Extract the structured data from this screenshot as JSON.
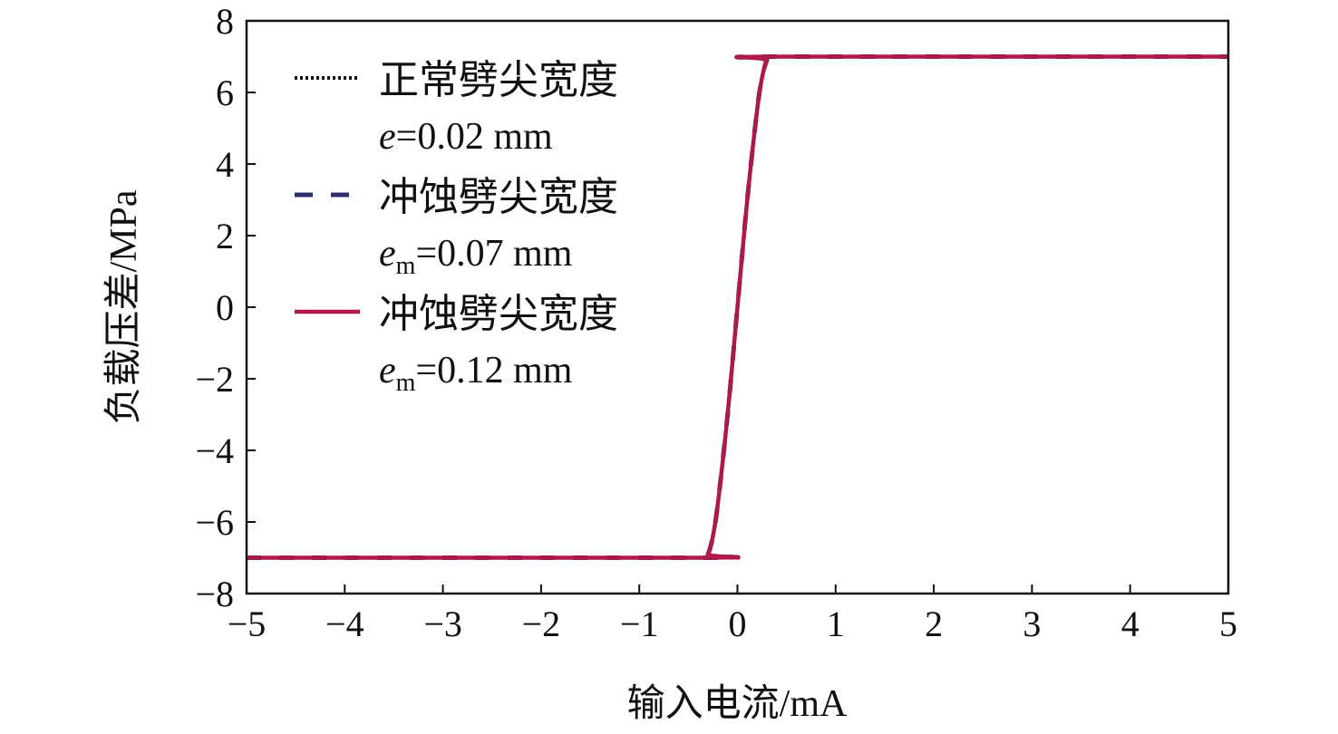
{
  "chart_data": {
    "type": "line",
    "title": "",
    "xlabel": "输入电流/mA",
    "ylabel": "负载压差/MPa",
    "xlim": [
      -5,
      5
    ],
    "ylim": [
      -8,
      8
    ],
    "xticks": [
      -5,
      -4,
      -3,
      -2,
      -1,
      0,
      1,
      2,
      3,
      4,
      5
    ],
    "yticks": [
      -8,
      -6,
      -4,
      -2,
      0,
      2,
      4,
      6,
      8
    ],
    "grid": false,
    "legend_placement": "top-left",
    "series": [
      {
        "name": "正常劈尖宽度",
        "sub": "e=0.02 mm",
        "sub_italic": "e",
        "sub_script": "",
        "sub_rest": "=0.02 mm",
        "style": "dotted",
        "color": "#111111",
        "x": [
          -5,
          -0.35,
          -0.3,
          -0.25,
          -0.2,
          -0.1,
          0,
          0.1,
          0.2,
          0.25,
          0.3,
          0.35,
          5
        ],
        "y": [
          -7,
          -7,
          -6.9,
          -6.4,
          -5.5,
          -3,
          0,
          3,
          5.5,
          6.4,
          6.9,
          7,
          7
        ]
      },
      {
        "name": "冲蚀劈尖宽度",
        "sub": "em=0.07 mm",
        "sub_italic": "e",
        "sub_script": "m",
        "sub_rest": "=0.07 mm",
        "style": "dashed",
        "color": "#2e2e6e",
        "x": [
          -5,
          -0.35,
          -0.3,
          -0.25,
          -0.2,
          -0.1,
          0,
          0.1,
          0.2,
          0.25,
          0.3,
          0.35,
          5
        ],
        "y": [
          -7,
          -7,
          -6.9,
          -6.4,
          -5.5,
          -3,
          0,
          3,
          5.5,
          6.4,
          6.9,
          7,
          7
        ]
      },
      {
        "name": "冲蚀劈尖宽度",
        "sub": "em=0.12 mm",
        "sub_italic": "e",
        "sub_script": "m",
        "sub_rest": "=0.12 mm",
        "style": "solid",
        "color": "#b0174a",
        "x": [
          -5,
          -0.35,
          -0.3,
          -0.25,
          -0.2,
          -0.1,
          0,
          0.1,
          0.2,
          0.25,
          0.3,
          0.35,
          5
        ],
        "y": [
          -7,
          -7,
          -6.9,
          -6.4,
          -5.5,
          -3,
          0,
          3,
          5.5,
          6.4,
          6.9,
          7,
          7
        ]
      }
    ]
  }
}
